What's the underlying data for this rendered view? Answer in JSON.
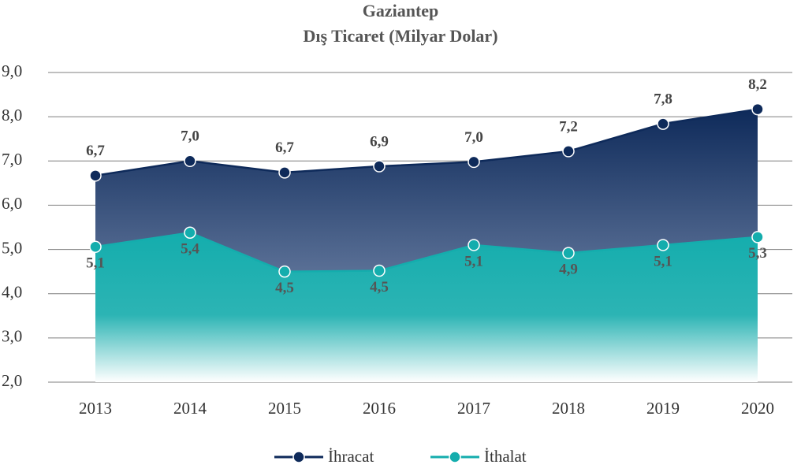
{
  "chart_data": {
    "type": "area",
    "title": "Gaziantep",
    "subtitle": "Dış Ticaret (Milyar Dolar)",
    "categories": [
      "2013",
      "2014",
      "2015",
      "2016",
      "2017",
      "2018",
      "2019",
      "2020"
    ],
    "series": [
      {
        "name": "İhracat",
        "color": "#0e2a5a",
        "values": [
          6.67,
          7.0,
          6.74,
          6.88,
          6.98,
          7.22,
          7.84,
          8.17
        ],
        "value_labels": [
          "6,7",
          "7,0",
          "6,7",
          "6,9",
          "7,0",
          "7,2",
          "7,8",
          "8,2"
        ]
      },
      {
        "name": "İthalat",
        "color": "#14adad",
        "values": [
          5.06,
          5.38,
          4.5,
          4.52,
          5.1,
          4.92,
          5.1,
          5.28
        ],
        "value_labels": [
          "5,1",
          "5,4",
          "4,5",
          "4,5",
          "5,1",
          "4,9",
          "5,1",
          "5,3"
        ]
      }
    ],
    "ylim": [
      2,
      9
    ],
    "yticks": [
      {
        "value": 2,
        "label": "2,0"
      },
      {
        "value": 3,
        "label": "3,0"
      },
      {
        "value": 4,
        "label": "4,0"
      },
      {
        "value": 5,
        "label": "5,0"
      },
      {
        "value": 6,
        "label": "6,0"
      },
      {
        "value": 7,
        "label": "7,0"
      },
      {
        "value": 8,
        "label": "8,0"
      },
      {
        "value": 9,
        "label": "9,0"
      }
    ],
    "grid": true,
    "legend": "bottom"
  }
}
